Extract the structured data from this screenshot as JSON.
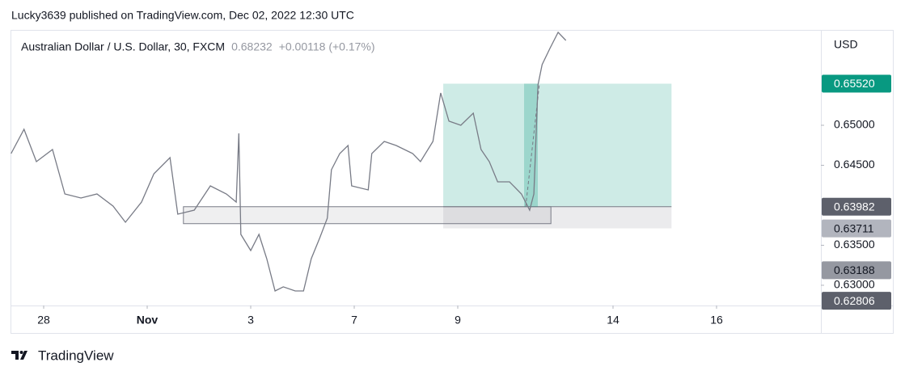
{
  "header": {
    "published": "Lucky3639 published on TradingView.com, Dec 02, 2022 12:30 UTC",
    "brand": "TradingView"
  },
  "chart_data": {
    "type": "line",
    "title": "Australian Dollar / U.S. Dollar, 30, FXCM",
    "last": "0.68232",
    "change": "+0.00118 (+0.17%)",
    "currency": "USD",
    "series": [
      {
        "color": "#787b86",
        "x": [
          -0.63,
          -0.38,
          -0.14,
          0.17,
          0.41,
          0.72,
          1.03,
          1.34,
          1.58,
          1.89,
          2.13,
          2.44,
          2.59,
          2.91,
          3.22,
          3.53,
          3.72,
          3.77,
          3.81,
          4.0,
          4.16,
          4.31,
          4.47,
          4.63,
          4.86,
          5.02,
          5.17,
          5.33,
          5.48,
          5.56,
          5.72,
          5.88,
          5.95,
          6.27,
          6.34,
          6.58,
          6.81,
          7.13,
          7.28,
          7.52,
          7.67,
          7.83,
          8.06,
          8.3,
          8.45,
          8.61,
          8.77,
          9.0,
          9.23,
          9.39,
          9.47,
          9.55,
          9.63,
          9.78,
          9.94,
          10.09
        ],
        "values": [
          0.64646,
          0.64949,
          0.64545,
          0.64697,
          0.64141,
          0.64091,
          0.64141,
          0.6399,
          0.63788,
          0.6404,
          0.64394,
          0.64596,
          0.63889,
          0.63939,
          0.64242,
          0.64141,
          0.6404,
          0.64899,
          0.63636,
          0.63434,
          0.63636,
          0.63333,
          0.62929,
          0.6298,
          0.62929,
          0.62929,
          0.63333,
          0.63586,
          0.63838,
          0.64444,
          0.64646,
          0.64747,
          0.64242,
          0.64192,
          0.64646,
          0.64798,
          0.64747,
          0.64646,
          0.64545,
          0.64798,
          0.65404,
          0.65051,
          0.65,
          0.65152,
          0.64697,
          0.64545,
          0.64293,
          0.64293,
          0.64141,
          0.63939,
          0.64141,
          0.65505,
          0.65758,
          0.6596,
          0.66162,
          0.66061
        ]
      }
    ],
    "xlim": [
      -0.625,
      15.016
    ],
    "xticks": [
      {
        "value": 0,
        "label": "28"
      },
      {
        "value": 2,
        "label": "Nov"
      },
      {
        "value": 4,
        "label": "3"
      },
      {
        "value": 6,
        "label": "7"
      },
      {
        "value": 8,
        "label": "9"
      },
      {
        "value": 11,
        "label": "14"
      },
      {
        "value": 13,
        "label": "16"
      }
    ],
    "ylim": [
      0.62747,
      0.66182
    ],
    "yticks": [
      {
        "value": 0.63,
        "label": "0.63000"
      },
      {
        "value": 0.635,
        "label": "0.63500"
      },
      {
        "value": 0.645,
        "label": "0.64500"
      },
      {
        "value": 0.65,
        "label": "0.65000"
      }
    ],
    "position": {
      "x": [
        7.72,
        12.13
      ],
      "target": 0.6552,
      "entry": 0.63982,
      "stop": 0.63711
    },
    "rectangle": {
      "x": [
        2.7,
        9.8
      ],
      "y": [
        0.6377,
        0.63982
      ]
    },
    "price_tags": [
      {
        "value": 0.6552,
        "label": "0.65520",
        "color": "#089981",
        "text_color": "#ffffff"
      },
      {
        "value": 0.63982,
        "label": "0.63982",
        "color": "#5d606b",
        "text_color": "#ffffff"
      },
      {
        "value": 0.63711,
        "label": "0.63711",
        "color": "#b2b5be",
        "text_color": "#131722"
      },
      {
        "value": 0.63188,
        "label": "0.63188",
        "color": "#9598a1",
        "text_color": "#131722"
      },
      {
        "value": 0.62806,
        "label": "0.62806",
        "color": "#5d606b",
        "text_color": "#ffffff"
      }
    ]
  }
}
